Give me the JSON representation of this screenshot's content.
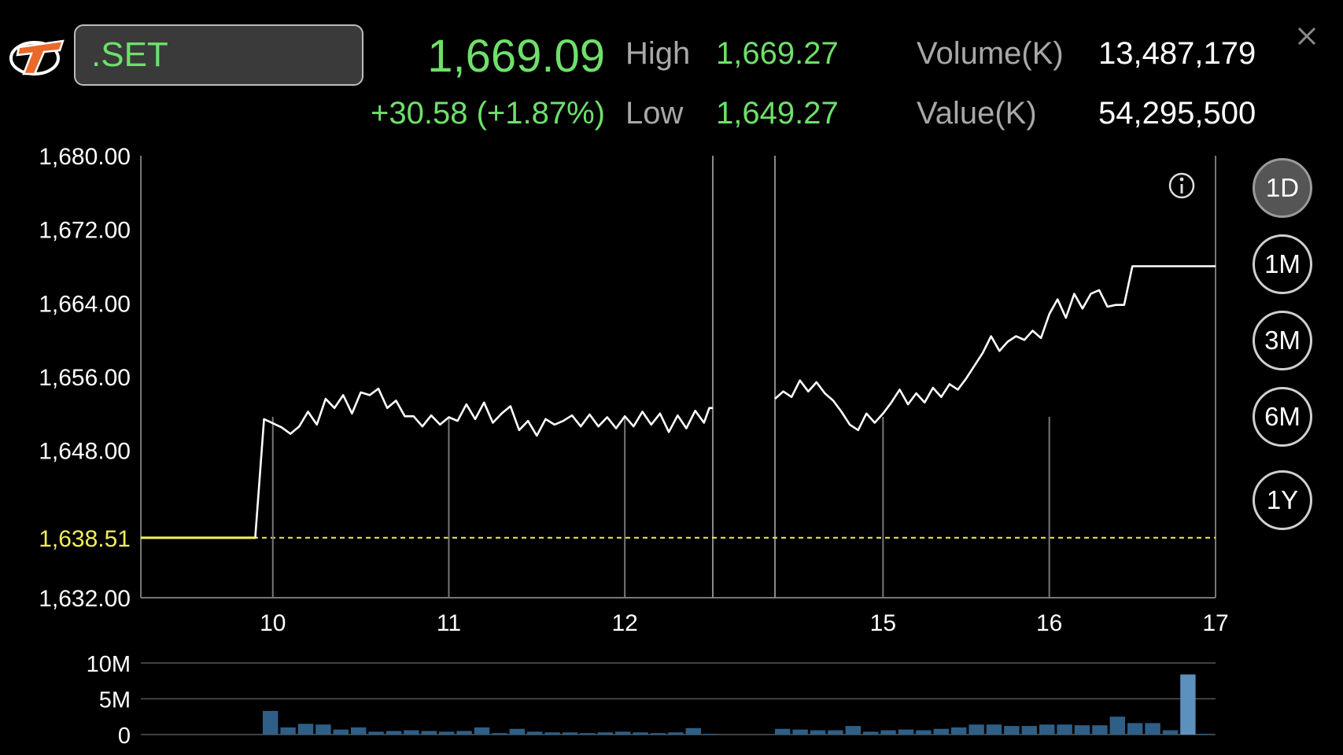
{
  "header": {
    "symbol": ".SET",
    "last_price": "1,669.09",
    "change": "+30.58 (+1.87%)",
    "high_label": "High",
    "high_value": "1,669.27",
    "low_label": "Low",
    "low_value": "1,649.27",
    "volume_label": "Volume(K)",
    "volume_value": "13,487,179",
    "value_label": "Value(K)",
    "value_value": "54,295,500"
  },
  "periods": [
    {
      "label": "1D",
      "active": true
    },
    {
      "label": "1M",
      "active": false
    },
    {
      "label": "3M",
      "active": false
    },
    {
      "label": "6M",
      "active": false
    },
    {
      "label": "1Y",
      "active": false
    }
  ],
  "icons": {
    "logo": "app-logo",
    "close": "close-icon",
    "info": "info-icon"
  },
  "colors": {
    "price_up": "#6ee06a",
    "previous_close": "#f2ee5a",
    "line": "#ffffff",
    "volume_bar": "#2f5f86",
    "volume_bar_peak": "#5c91bd"
  },
  "chart_data": [
    {
      "type": "line",
      "title": "",
      "xlabel": "",
      "ylabel": "",
      "x_ticks": [
        {
          "label": "10",
          "hour": 10
        },
        {
          "label": "11",
          "hour": 11
        },
        {
          "label": "12",
          "hour": 12
        },
        {
          "label": "15",
          "hour": 15
        },
        {
          "label": "16",
          "hour": 16
        },
        {
          "label": "17",
          "hour": 17
        }
      ],
      "y_ticks": [
        "1,680.00",
        "1,672.00",
        "1,664.00",
        "1,656.00",
        "1,648.00",
        "1,632.00"
      ],
      "ylim": [
        1632,
        1680
      ],
      "previous_close": {
        "label": "1,638.51",
        "value": 1638.51
      },
      "lunch_break": [
        12.5,
        14.35
      ],
      "grid": true,
      "series": [
        {
          "morning": [
            [
              9.25,
              1638.51
            ],
            [
              9.9,
              1638.51
            ],
            [
              9.95,
              1651.4
            ],
            [
              10.05,
              1650.5
            ],
            [
              10.1,
              1649.8
            ],
            [
              10.15,
              1650.6
            ],
            [
              10.2,
              1652.2
            ],
            [
              10.25,
              1650.8
            ],
            [
              10.3,
              1653.6
            ],
            [
              10.35,
              1652.6
            ],
            [
              10.4,
              1654.0
            ],
            [
              10.45,
              1652.0
            ],
            [
              10.5,
              1654.3
            ],
            [
              10.55,
              1654.0
            ],
            [
              10.6,
              1654.7
            ],
            [
              10.65,
              1652.6
            ],
            [
              10.7,
              1653.4
            ],
            [
              10.75,
              1651.7
            ],
            [
              10.8,
              1651.7
            ],
            [
              10.85,
              1650.6
            ],
            [
              10.9,
              1651.8
            ],
            [
              10.95,
              1650.8
            ],
            [
              11.0,
              1651.6
            ],
            [
              11.05,
              1651.2
            ],
            [
              11.1,
              1653.0
            ],
            [
              11.15,
              1651.4
            ],
            [
              11.2,
              1653.2
            ],
            [
              11.25,
              1651.0
            ],
            [
              11.3,
              1652.0
            ],
            [
              11.35,
              1652.8
            ],
            [
              11.4,
              1650.2
            ],
            [
              11.45,
              1651.2
            ],
            [
              11.5,
              1649.6
            ],
            [
              11.55,
              1651.4
            ],
            [
              11.6,
              1650.8
            ],
            [
              11.65,
              1651.2
            ],
            [
              11.7,
              1651.8
            ],
            [
              11.75,
              1650.6
            ],
            [
              11.8,
              1651.9
            ],
            [
              11.85,
              1650.6
            ],
            [
              11.9,
              1651.6
            ],
            [
              11.95,
              1650.4
            ],
            [
              12.0,
              1651.7
            ],
            [
              12.05,
              1650.6
            ],
            [
              12.1,
              1652.2
            ],
            [
              12.15,
              1650.8
            ],
            [
              12.2,
              1652.0
            ],
            [
              12.25,
              1650.0
            ],
            [
              12.3,
              1651.8
            ],
            [
              12.35,
              1650.4
            ],
            [
              12.4,
              1652.3
            ],
            [
              12.45,
              1651.0
            ],
            [
              12.48,
              1652.6
            ],
            [
              12.5,
              1652.6
            ]
          ],
          "afternoon": [
            [
              14.35,
              1653.6
            ],
            [
              14.4,
              1654.4
            ],
            [
              14.45,
              1653.8
            ],
            [
              14.5,
              1655.6
            ],
            [
              14.55,
              1654.4
            ],
            [
              14.6,
              1655.4
            ],
            [
              14.65,
              1654.2
            ],
            [
              14.7,
              1653.4
            ],
            [
              14.75,
              1652.2
            ],
            [
              14.8,
              1650.8
            ],
            [
              14.85,
              1650.2
            ],
            [
              14.9,
              1652.0
            ],
            [
              14.95,
              1651.0
            ],
            [
              15.0,
              1652.0
            ],
            [
              15.05,
              1653.2
            ],
            [
              15.1,
              1654.6
            ],
            [
              15.15,
              1653.0
            ],
            [
              15.2,
              1654.2
            ],
            [
              15.25,
              1653.2
            ],
            [
              15.3,
              1654.8
            ],
            [
              15.35,
              1653.8
            ],
            [
              15.4,
              1655.2
            ],
            [
              15.45,
              1654.6
            ],
            [
              15.5,
              1655.8
            ],
            [
              15.55,
              1657.2
            ],
            [
              15.6,
              1658.6
            ],
            [
              15.65,
              1660.4
            ],
            [
              15.7,
              1658.8
            ],
            [
              15.75,
              1659.8
            ],
            [
              15.8,
              1660.4
            ],
            [
              15.85,
              1660.0
            ],
            [
              15.9,
              1661.0
            ],
            [
              15.95,
              1660.2
            ],
            [
              16.0,
              1662.8
            ],
            [
              16.05,
              1664.4
            ],
            [
              16.1,
              1662.4
            ],
            [
              16.15,
              1665.0
            ],
            [
              16.2,
              1663.4
            ],
            [
              16.25,
              1665.0
            ],
            [
              16.3,
              1665.4
            ],
            [
              16.35,
              1663.6
            ],
            [
              16.4,
              1663.8
            ],
            [
              16.45,
              1663.8
            ],
            [
              16.5,
              1668.0
            ],
            [
              16.55,
              1668.0
            ],
            [
              16.6,
              1668.0
            ],
            [
              16.65,
              1668.0
            ],
            [
              16.7,
              1668.0
            ],
            [
              16.75,
              1668.0
            ],
            [
              16.8,
              1668.0
            ],
            [
              16.85,
              1668.0
            ],
            [
              16.9,
              1668.0
            ],
            [
              16.95,
              1668.0
            ],
            [
              17.0,
              1668.0
            ]
          ]
        }
      ]
    },
    {
      "type": "bar",
      "title": "",
      "y_ticks": [
        "10M",
        "5M",
        "0"
      ],
      "ylim": [
        0,
        10
      ],
      "unit": "M",
      "bars_morning": [
        3.3,
        1.0,
        1.5,
        1.4,
        0.7,
        1.0,
        0.4,
        0.5,
        0.6,
        0.5,
        0.4,
        0.5,
        1.0,
        0.2,
        0.8,
        0.4,
        0.3,
        0.3,
        0.2,
        0.3,
        0.4,
        0.3,
        0.2,
        0.3,
        0.9,
        0.1
      ],
      "bars_afternoon": [
        0.8,
        0.7,
        0.6,
        0.6,
        1.2,
        0.4,
        0.6,
        0.7,
        0.6,
        0.8,
        1.0,
        1.4,
        1.4,
        1.2,
        1.2,
        1.4,
        1.4,
        1.3,
        1.3,
        2.5,
        1.6,
        1.6,
        0.6,
        8.4,
        0.1
      ]
    }
  ]
}
